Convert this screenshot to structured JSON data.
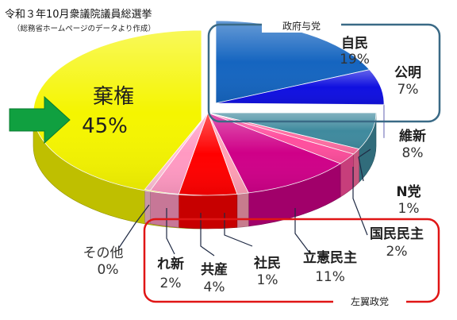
{
  "title": "令和３年10月衆議院議員総選挙",
  "subtitle": "（総務省ホームページのデータより作成）",
  "colors": {
    "abstain": "#f5f500",
    "ldp": "#1565c0",
    "komeito": "#1010e0",
    "ishin": "#3f8a9e",
    "nhk": "#ff6fa3",
    "dpfp": "#ff4f9e",
    "cdp": "#cf0088",
    "sdp": "#ff9fb5",
    "jcp": "#ff0000",
    "reiwa": "#ff99c2",
    "other": "#ffbfd5",
    "arrow": "#10a040",
    "government_box": "#3a6a86",
    "opposition_box": "#e01515"
  },
  "chart_data": {
    "type": "pie",
    "title": "令和３年10月衆議院議員総選挙",
    "subtitle": "（総務省ホームページのデータより作成）",
    "slices": [
      {
        "name": "棄権",
        "percent": 45
      },
      {
        "name": "自民",
        "percent": 19
      },
      {
        "name": "公明",
        "percent": 7
      },
      {
        "name": "維新",
        "percent": 8
      },
      {
        "name": "N党",
        "percent": 1
      },
      {
        "name": "国民民主",
        "percent": 2
      },
      {
        "name": "立憲民主",
        "percent": 11
      },
      {
        "name": "社民",
        "percent": 1
      },
      {
        "name": "共産",
        "percent": 4
      },
      {
        "name": "れ新",
        "percent": 2
      },
      {
        "name": "その他",
        "percent": 0
      }
    ],
    "labels": [
      {
        "name": "棄権",
        "pct": "45%"
      },
      {
        "name": "自民",
        "pct": "19%"
      },
      {
        "name": "公明",
        "pct": "7%"
      },
      {
        "name": "維新",
        "pct": "8%"
      },
      {
        "name": "N党",
        "pct": "1%"
      },
      {
        "name": "国民民主",
        "pct": "2%"
      },
      {
        "name": "立憲民主",
        "pct": "11%"
      },
      {
        "name": "社民",
        "pct": "1%"
      },
      {
        "name": "共産",
        "pct": "4%"
      },
      {
        "name": "れ新",
        "pct": "2%"
      },
      {
        "name": "その他",
        "pct": "0%"
      }
    ],
    "groups": {
      "government": "政府与党",
      "opposition": "左翼政党"
    }
  }
}
